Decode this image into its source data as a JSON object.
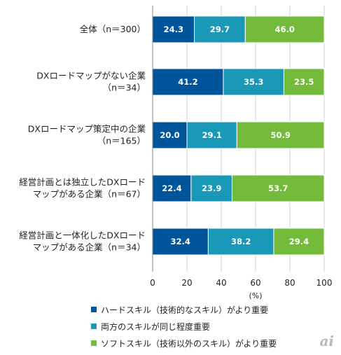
{
  "chart_data": {
    "type": "bar",
    "orientation": "horizontal-stacked",
    "categories": [
      [
        "全体（n＝300）"
      ],
      [
        "DXロードマップがない企業",
        "（n＝34）"
      ],
      [
        "DXロードマップ策定中の企業",
        "（n＝165）"
      ],
      [
        "経営計画とは独立したDXロード",
        "マップがある企業（n＝67）"
      ],
      [
        "経営計画と一体化したDXロード",
        "マップがある企業（n＝34）"
      ]
    ],
    "series": [
      {
        "name": "ハードスキル（技術的なスキル）がより重要",
        "color": "#00549a",
        "values": [
          24.3,
          41.2,
          20.0,
          22.4,
          32.4
        ]
      },
      {
        "name": "両方のスキルが同じ程度重要",
        "color": "#1a98b8",
        "values": [
          29.7,
          35.3,
          29.1,
          23.9,
          38.2
        ]
      },
      {
        "name": "ソフトスキル（技術以外のスキル）がより重要",
        "color": "#74ba3b",
        "values": [
          46.0,
          23.5,
          50.9,
          53.7,
          29.4
        ]
      }
    ],
    "xlim": [
      0,
      100
    ],
    "xticks": [
      "0",
      "20",
      "40",
      "60",
      "80",
      "100"
    ],
    "xunit": "(%)",
    "grid": true,
    "legend_position": "bottom"
  },
  "logo": "ai"
}
